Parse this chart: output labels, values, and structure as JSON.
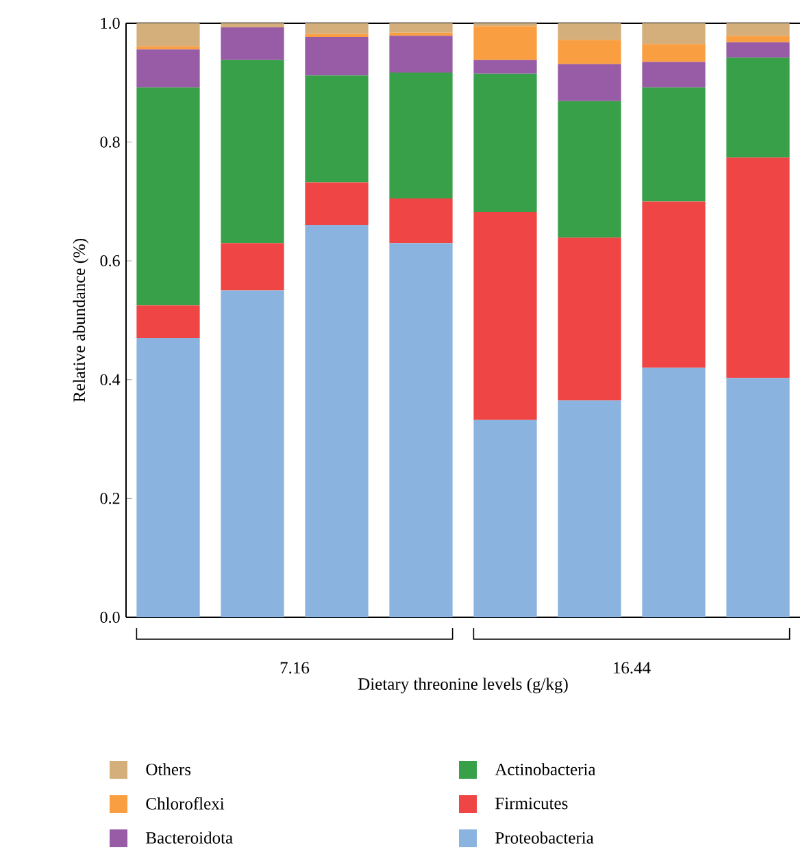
{
  "chart_data": {
    "type": "bar",
    "stacked": true,
    "xlabel": "Dietary threonine levels (g/kg)",
    "ylabel": "Relative abundance (%)",
    "categories": [
      null,
      null,
      null,
      null,
      null,
      null,
      null,
      null
    ],
    "annotations": [
      "7.16",
      "16.44"
    ],
    "series": [
      {
        "name": "Proteobacteria",
        "color": "#8ab4df",
        "values": [
          0.47,
          0.55,
          0.66,
          0.63,
          0.332,
          0.365,
          0.42,
          0.403
        ]
      },
      {
        "name": "Firmicutes",
        "color": "#ef4545",
        "values": [
          0.055,
          0.08,
          0.072,
          0.075,
          0.35,
          0.274,
          0.28,
          0.371
        ]
      },
      {
        "name": "Actinobacteria",
        "color": "#38a048",
        "values": [
          0.367,
          0.308,
          0.18,
          0.212,
          0.233,
          0.23,
          0.192,
          0.168
        ]
      },
      {
        "name": "Bacteroidota",
        "color": "#985ba6",
        "values": [
          0.064,
          0.055,
          0.065,
          0.062,
          0.023,
          0.062,
          0.043,
          0.026
        ]
      },
      {
        "name": "Chloroflexi",
        "color": "#f99f42",
        "values": [
          0.005,
          0,
          0.005,
          0.005,
          0.057,
          0.041,
          0.03,
          0.011
        ]
      },
      {
        "name": "Others",
        "color": "#d4ae7b",
        "values": [
          0.039,
          0.007,
          0.018,
          0.016,
          0.005,
          0.028,
          0.035,
          0.021
        ]
      }
    ],
    "ylim": [
      0,
      1
    ],
    "yticks": [
      {
        "value": 0,
        "label": "0.0"
      },
      {
        "value": 0.2,
        "label": "0.2"
      },
      {
        "value": 0.4,
        "label": "0.4"
      },
      {
        "value": 0.6,
        "label": "0.6"
      },
      {
        "value": 0.8,
        "label": "0.8"
      },
      {
        "value": 1,
        "label": "1.0"
      }
    ],
    "legend": "bottom",
    "grid": false
  }
}
